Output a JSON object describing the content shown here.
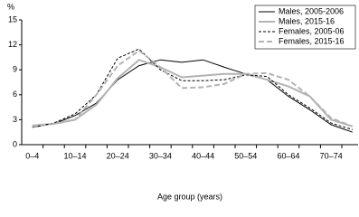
{
  "chart_data": {
    "type": "line",
    "y_label": "%",
    "x_label": "Age group (years)",
    "categories": [
      "0–4",
      null,
      "10–14",
      null,
      "20–24",
      null,
      "30–34",
      null,
      "40–44",
      null,
      "50–54",
      null,
      "60–64",
      null,
      "70–74",
      null
    ],
    "series": [
      {
        "name": "Males, 2005-2006",
        "color": "#000000",
        "dash": false,
        "values": [
          2.1,
          2.5,
          3.5,
          5.0,
          7.8,
          9.5,
          10.2,
          9.9,
          10.2,
          9.3,
          8.5,
          7.8,
          5.8,
          4.2,
          2.4,
          1.5
        ]
      },
      {
        "name": "Males, 2015-16",
        "color": "#b3b3b3",
        "dash": false,
        "values": [
          2.3,
          2.5,
          3.0,
          4.8,
          8.0,
          10.2,
          9.3,
          8.1,
          8.3,
          8.5,
          8.5,
          7.8,
          7.0,
          5.8,
          3.0,
          2.2
        ]
      },
      {
        "name": "Females, 2005-06",
        "color": "#000000",
        "dash": true,
        "values": [
          2.1,
          2.6,
          3.7,
          6.0,
          10.4,
          11.5,
          9.0,
          7.7,
          7.7,
          7.8,
          8.4,
          8.2,
          6.0,
          4.4,
          2.6,
          1.8
        ]
      },
      {
        "name": "Females, 2015-16",
        "color": "#b3b3b3",
        "dash": true,
        "values": [
          2.2,
          2.5,
          3.0,
          6.0,
          9.5,
          11.3,
          9.3,
          6.8,
          6.9,
          7.3,
          8.5,
          8.6,
          7.8,
          5.8,
          3.2,
          2.2
        ]
      }
    ],
    "ylim": [
      0,
      15
    ],
    "yticks": [
      0,
      3,
      6,
      9,
      12,
      15
    ],
    "grid": false,
    "legend": "upper right"
  }
}
